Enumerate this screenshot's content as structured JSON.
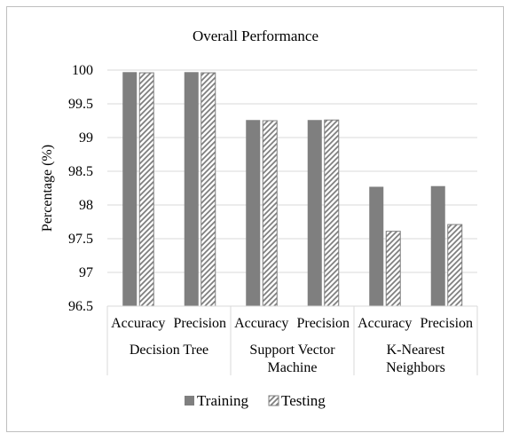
{
  "chart_data": {
    "type": "bar",
    "title": "Overall Performance",
    "ylabel": "Percentage (%)",
    "xlabel": "",
    "ylim": [
      96.5,
      100
    ],
    "yticks": [
      "96.5",
      "97",
      "97.5",
      "98",
      "98.5",
      "99",
      "99.5",
      "100"
    ],
    "grid": true,
    "legend_position": "bottom",
    "groups": [
      "Decision Tree",
      "Support Vector Machine",
      "K-Nearest Neighbors"
    ],
    "group_label_lines": [
      [
        "Decision Tree"
      ],
      [
        "Support Vector",
        "Machine"
      ],
      [
        "K-Nearest",
        "Neighbors"
      ]
    ],
    "categories": [
      "Accuracy",
      "Precision",
      "Accuracy",
      "Precision",
      "Accuracy",
      "Precision"
    ],
    "series": [
      {
        "name": "Training",
        "values": [
          99.97,
          99.97,
          99.26,
          99.26,
          98.27,
          98.28
        ],
        "color": "#7f7f7f",
        "pattern": "solid"
      },
      {
        "name": "Testing",
        "values": [
          99.96,
          99.96,
          99.25,
          99.26,
          97.61,
          97.71
        ],
        "color": "#7f7f7f",
        "pattern": "hatched"
      }
    ]
  }
}
